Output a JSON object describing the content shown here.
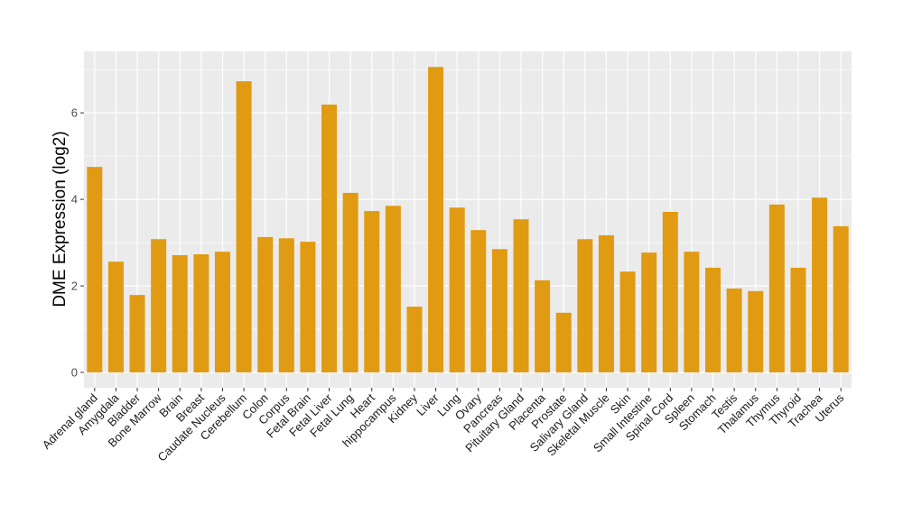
{
  "chart_data": {
    "type": "bar",
    "title": "",
    "xlabel": "",
    "ylabel": "DME Expression (log2)",
    "ylim": [
      -0.354,
      7.42
    ],
    "yticks": [
      0,
      2,
      4,
      6
    ],
    "grid": true,
    "bar_color": "#E09B12",
    "panel_color": "#EBEBEB",
    "categories": [
      "Adrenal gland",
      "Amygdala",
      "Bladder",
      "Bone Marrow",
      "Brain",
      "Breast",
      "Caudate Nucleus",
      "Cerebellum",
      "Colon",
      "Corpus",
      "Fetal Brain",
      "Fetal Liver",
      "Fetal Lung",
      "Heart",
      "hippocampus",
      "Kidney",
      "Liver",
      "Lung",
      "Ovary",
      "Pancreas",
      "Pituitary Gland",
      "Placenta",
      "Prostate",
      "Salivary Gland",
      "Skeletal Muscle",
      "Skin",
      "Small Intestine",
      "Spinal Cord",
      "Spleen",
      "Stomach",
      "Testis",
      "Thalamus",
      "Thymus",
      "Thyroid",
      "Trachea",
      "Uterus"
    ],
    "values": [
      4.75,
      2.56,
      1.79,
      3.08,
      2.71,
      2.73,
      2.79,
      6.73,
      3.13,
      3.1,
      3.02,
      6.19,
      4.15,
      3.73,
      3.85,
      1.52,
      7.06,
      3.81,
      3.29,
      2.85,
      3.54,
      2.13,
      1.38,
      3.08,
      3.17,
      2.33,
      2.77,
      3.71,
      2.79,
      2.42,
      1.94,
      1.88,
      3.88,
      2.42,
      4.04,
      3.38
    ]
  }
}
